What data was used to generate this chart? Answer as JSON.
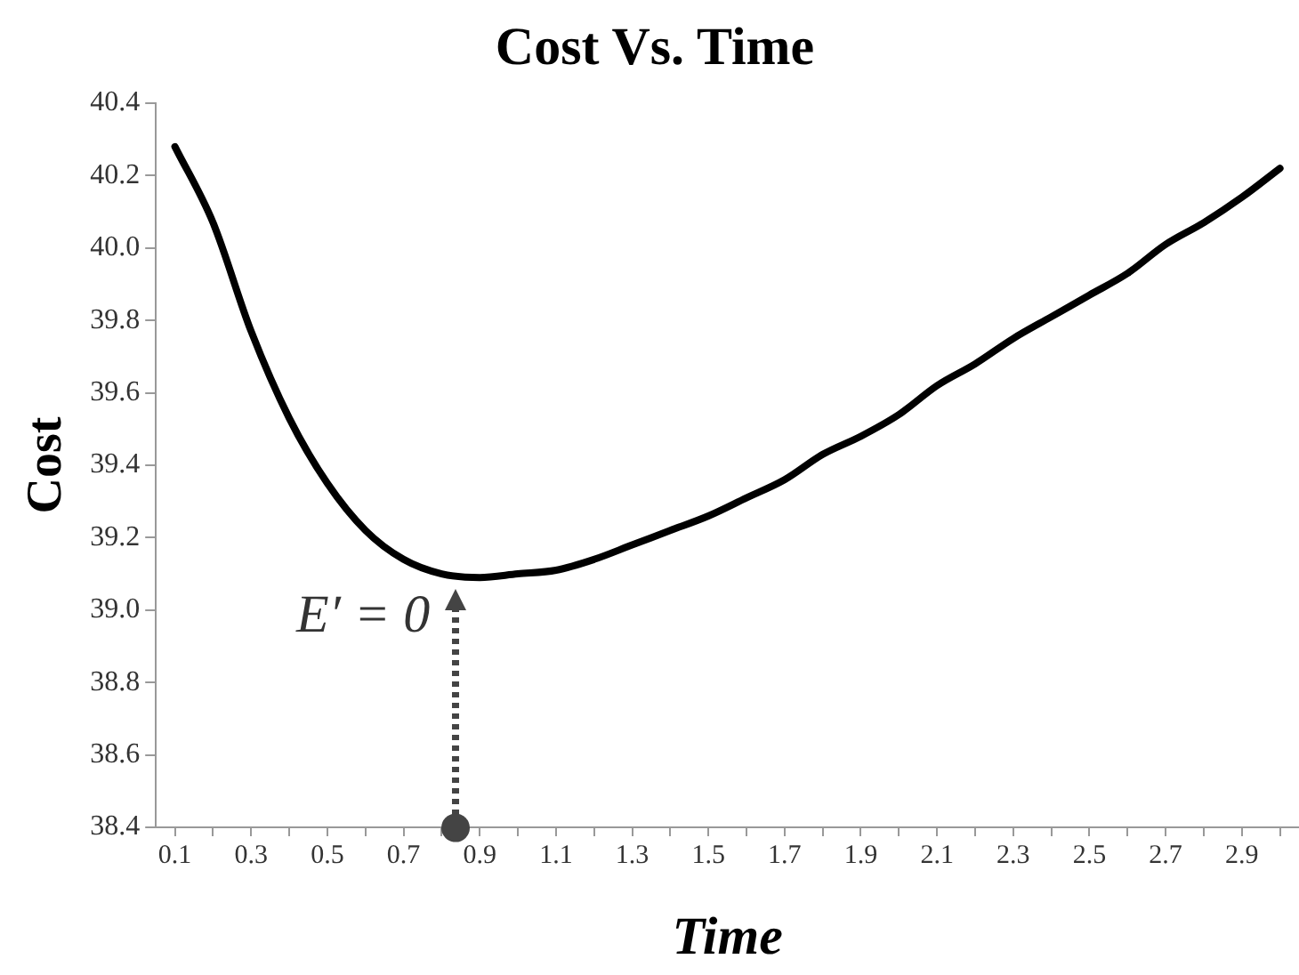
{
  "chart_data": {
    "type": "line",
    "title": "Cost Vs. Time",
    "xlabel": "Time",
    "ylabel": "Cost",
    "categories": [
      "0.1",
      null,
      "0.3",
      null,
      "0.5",
      null,
      "0.7",
      null,
      "0.9",
      null,
      "1.1",
      null,
      "1.3",
      null,
      "1.5",
      null,
      "1.7",
      null,
      "1.9",
      null,
      "2.1",
      null,
      "2.3",
      null,
      "2.5",
      null,
      "2.7",
      null,
      "2.9",
      null
    ],
    "series": [
      {
        "color": "#000000",
        "values": [
          40.28,
          40.07,
          39.77,
          39.53,
          39.35,
          39.22,
          39.14,
          39.1,
          39.09,
          39.1,
          39.11,
          39.14,
          39.18,
          39.22,
          39.26,
          39.31,
          39.36,
          39.43,
          39.48,
          39.54,
          39.62,
          39.68,
          39.75,
          39.81,
          39.87,
          39.93,
          40.01,
          40.07,
          40.14,
          40.22
        ]
      }
    ],
    "ylim": [
      38.4,
      40.4
    ],
    "yticks": [
      38.4,
      38.6,
      38.8,
      {
        "value": 39,
        "label": "39.0"
      },
      39.2,
      39.4,
      39.6,
      39.8,
      {
        "value": 40,
        "label": "40.0"
      },
      40.2,
      40.4
    ],
    "marker": "none",
    "line_style": "solid",
    "legend": false,
    "annotations": [
      "E′ = 0"
    ]
  }
}
